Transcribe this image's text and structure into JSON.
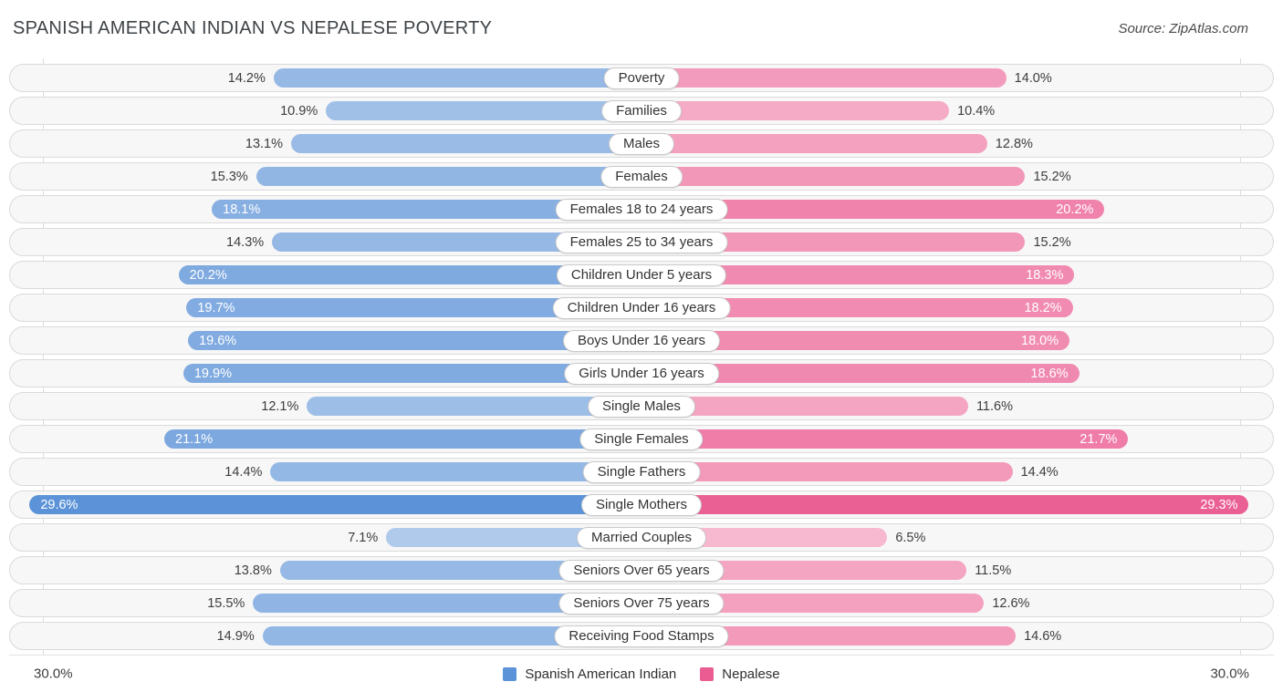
{
  "header": {
    "title": "SPANISH AMERICAN INDIAN VS NEPALESE POVERTY",
    "source": "Source: ZipAtlas.com"
  },
  "footer": {
    "axis_left": "30.0%",
    "axis_right": "30.0%",
    "legend": [
      {
        "label": "Spanish American Indian",
        "color": "#5b92d8"
      },
      {
        "label": "Nepalese",
        "color": "#ea5c92"
      }
    ]
  },
  "colors": {
    "blue_light": "#c9dbf1",
    "blue_dark": "#5b92d8",
    "pink_light": "#fbd3e0",
    "pink_dark": "#ea5c92",
    "track_bg": "#f7f7f7",
    "track_border": "#dadada"
  },
  "chart_data": {
    "type": "bar",
    "orientation": "diverging-horizontal",
    "title": "SPANISH AMERICAN INDIAN VS NEPALESE POVERTY",
    "source": "ZipAtlas.com",
    "value_suffix": "%",
    "xlim": [
      0,
      30
    ],
    "axis_ticks": [
      "30.0%",
      "30.0%"
    ],
    "legend_position": "bottom-center",
    "inside_label_threshold": 16,
    "categories": [
      "Poverty",
      "Families",
      "Males",
      "Females",
      "Females 18 to 24 years",
      "Females 25 to 34 years",
      "Children Under 5 years",
      "Children Under 16 years",
      "Boys Under 16 years",
      "Girls Under 16 years",
      "Single Males",
      "Single Females",
      "Single Fathers",
      "Single Mothers",
      "Married Couples",
      "Seniors Over 65 years",
      "Seniors Over 75 years",
      "Receiving Food Stamps"
    ],
    "series": [
      {
        "name": "Spanish American Indian",
        "values": [
          14.2,
          10.9,
          13.1,
          15.3,
          18.1,
          14.3,
          20.2,
          19.7,
          19.6,
          19.9,
          12.1,
          21.1,
          14.4,
          29.6,
          7.1,
          13.8,
          15.5,
          14.9
        ]
      },
      {
        "name": "Nepalese",
        "values": [
          14.0,
          10.4,
          12.8,
          15.2,
          20.2,
          15.2,
          18.3,
          18.2,
          18.0,
          18.6,
          11.6,
          21.7,
          14.4,
          29.3,
          6.5,
          11.5,
          12.6,
          14.6
        ]
      }
    ]
  }
}
